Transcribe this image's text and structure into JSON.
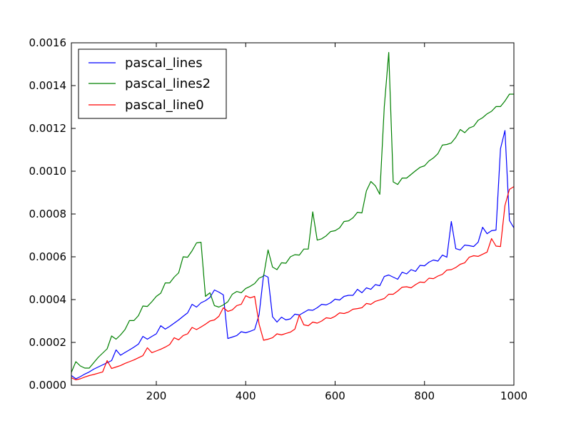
{
  "chart_data": {
    "type": "line",
    "title": "",
    "xlabel": "",
    "ylabel": "",
    "xlim": [
      10,
      1000
    ],
    "ylim": [
      0,
      0.0016
    ],
    "xticks": [
      200,
      400,
      600,
      800,
      1000
    ],
    "xtick_labels": [
      "200",
      "400",
      "600",
      "800",
      "1000"
    ],
    "yticks": [
      0,
      0.0002,
      0.0004,
      0.0006,
      0.0008,
      0.001,
      0.0012,
      0.0014,
      0.0016
    ],
    "ytick_labels": [
      "0.0000",
      "0.0002",
      "0.0004",
      "0.0006",
      "0.0008",
      "0.0010",
      "0.0012",
      "0.0014",
      "0.0016"
    ],
    "grid": false,
    "legend_position": "top-left",
    "series": [
      {
        "name": "pascal_lines",
        "color": "#0000ff",
        "x": [
          10,
          20,
          30,
          40,
          50,
          60,
          70,
          80,
          90,
          100,
          110,
          120,
          130,
          140,
          150,
          160,
          170,
          180,
          190,
          200,
          210,
          220,
          230,
          240,
          250,
          260,
          270,
          280,
          290,
          300,
          310,
          320,
          330,
          340,
          350,
          360,
          370,
          380,
          390,
          400,
          410,
          420,
          430,
          440,
          450,
          460,
          470,
          480,
          490,
          500,
          510,
          520,
          530,
          540,
          550,
          560,
          570,
          580,
          590,
          600,
          610,
          620,
          630,
          640,
          650,
          660,
          670,
          680,
          690,
          700,
          710,
          720,
          730,
          740,
          750,
          760,
          770,
          780,
          790,
          800,
          810,
          820,
          830,
          840,
          850,
          860,
          870,
          880,
          890,
          900,
          910,
          920,
          930,
          940,
          950,
          960,
          970,
          980,
          990,
          1000
        ],
        "y": [
          4.5e-05,
          3e-05,
          4e-05,
          5.2e-05,
          6.2e-05,
          7.5e-05,
          8.5e-05,
          9.5e-05,
          0.000105,
          0.000115,
          0.000165,
          0.00014,
          0.000153,
          0.000165,
          0.000178,
          0.000192,
          0.000228,
          0.000215,
          0.000228,
          0.00024,
          0.000278,
          0.000262,
          0.000275,
          0.00029,
          0.000305,
          0.000322,
          0.000338,
          0.000378,
          0.000365,
          0.000385,
          0.000395,
          0.00041,
          0.000445,
          0.000435,
          0.000422,
          0.000218,
          0.000225,
          0.000232,
          0.00025,
          0.000245,
          0.000252,
          0.00026,
          0.00033,
          0.000515,
          0.000505,
          0.00032,
          0.000295,
          0.000318,
          0.000305,
          0.00031,
          0.000332,
          0.000328,
          0.00034,
          0.000352,
          0.00035,
          0.000362,
          0.000378,
          0.000375,
          0.000385,
          0.000402,
          0.000398,
          0.000415,
          0.00042,
          0.00042,
          0.000448,
          0.000432,
          0.000455,
          0.000448,
          0.00047,
          0.000465,
          0.000508,
          0.000515,
          0.000505,
          0.000495,
          0.000528,
          0.00052,
          0.00054,
          0.000532,
          0.00056,
          0.000558,
          0.000575,
          0.000585,
          0.00058,
          0.000608,
          0.000598,
          0.000765,
          0.000638,
          0.000632,
          0.000655,
          0.000652,
          0.000648,
          0.000668,
          0.000738,
          0.000708,
          0.000722,
          0.000725,
          0.001105,
          0.00119,
          0.00077,
          0.000735
        ]
      },
      {
        "name": "pascal_lines2",
        "color": "#008000",
        "x": [
          10,
          20,
          30,
          40,
          50,
          60,
          70,
          80,
          90,
          100,
          110,
          120,
          130,
          140,
          150,
          160,
          170,
          180,
          190,
          200,
          210,
          220,
          230,
          240,
          250,
          260,
          270,
          280,
          290,
          300,
          310,
          320,
          330,
          340,
          350,
          360,
          370,
          380,
          390,
          400,
          410,
          420,
          430,
          440,
          450,
          460,
          470,
          480,
          490,
          500,
          510,
          520,
          530,
          540,
          550,
          560,
          570,
          580,
          590,
          600,
          610,
          620,
          630,
          640,
          650,
          660,
          670,
          680,
          690,
          700,
          710,
          720,
          730,
          740,
          750,
          760,
          770,
          780,
          790,
          800,
          810,
          820,
          830,
          840,
          850,
          860,
          870,
          880,
          890,
          900,
          910,
          920,
          930,
          940,
          950,
          960,
          970,
          980,
          990,
          1000
        ],
        "y": [
          6e-05,
          0.00011,
          9e-05,
          8e-05,
          8e-05,
          0.000105,
          0.00013,
          0.00015,
          0.00017,
          0.00023,
          0.000215,
          0.000235,
          0.00026,
          0.000302,
          0.000302,
          0.000325,
          0.00037,
          0.000368,
          0.00039,
          0.000415,
          0.00043,
          0.000478,
          0.000478,
          0.000505,
          0.000525,
          0.0006,
          0.000598,
          0.000628,
          0.000665,
          0.000668,
          0.000415,
          0.000432,
          0.000372,
          0.000365,
          0.000375,
          0.00039,
          0.000425,
          0.000438,
          0.000432,
          0.000452,
          0.000462,
          0.000475,
          0.0005,
          0.00051,
          0.000632,
          0.000552,
          0.00054,
          0.000572,
          0.00057,
          0.0006,
          0.00061,
          0.000608,
          0.000636,
          0.000636,
          0.00081,
          0.000678,
          0.000684,
          0.000698,
          0.000718,
          0.000722,
          0.000735,
          0.000765,
          0.000768,
          0.000782,
          0.000808,
          0.000805,
          0.000908,
          0.000952,
          0.000932,
          0.000892,
          0.0013,
          0.001555,
          0.00095,
          0.000938,
          0.000968,
          0.000968,
          0.000985,
          0.001002,
          0.001018,
          0.001025,
          0.001048,
          0.001062,
          0.001082,
          0.001122,
          0.001125,
          0.001132,
          0.001158,
          0.001195,
          0.00118,
          0.001202,
          0.00121,
          0.001238,
          0.00125,
          0.001268,
          0.00128,
          0.001302,
          0.001302,
          0.001328,
          0.00136,
          0.00136
        ]
      },
      {
        "name": "pascal_line0",
        "color": "#ff0000",
        "x": [
          10,
          20,
          30,
          40,
          50,
          60,
          70,
          80,
          90,
          100,
          110,
          120,
          130,
          140,
          150,
          160,
          170,
          180,
          190,
          200,
          210,
          220,
          230,
          240,
          250,
          260,
          270,
          280,
          290,
          300,
          310,
          320,
          330,
          340,
          350,
          360,
          370,
          380,
          390,
          400,
          410,
          420,
          430,
          440,
          450,
          460,
          470,
          480,
          490,
          500,
          510,
          520,
          530,
          540,
          550,
          560,
          570,
          580,
          590,
          600,
          610,
          620,
          630,
          640,
          650,
          660,
          670,
          680,
          690,
          700,
          710,
          720,
          730,
          740,
          750,
          760,
          770,
          780,
          790,
          800,
          810,
          820,
          830,
          840,
          850,
          860,
          870,
          880,
          890,
          900,
          910,
          920,
          930,
          940,
          950,
          960,
          970,
          980,
          990,
          1000
        ],
        "y": [
          3.5e-05,
          2.5e-05,
          3e-05,
          3.8e-05,
          4.5e-05,
          5e-05,
          5.6e-05,
          6.2e-05,
          0.000115,
          7.8e-05,
          8.5e-05,
          9.2e-05,
          0.000102,
          0.00011,
          0.000118,
          0.000128,
          0.000138,
          0.000175,
          0.000152,
          0.00016,
          0.000168,
          0.000178,
          0.00019,
          0.000222,
          0.000212,
          0.000232,
          0.00024,
          0.00027,
          0.00026,
          0.000272,
          0.000285,
          0.0003,
          0.000305,
          0.000322,
          0.000362,
          0.000345,
          0.000352,
          0.000372,
          0.000378,
          0.000418,
          0.000408,
          0.000415,
          0.000285,
          0.00021,
          0.000215,
          0.000222,
          0.00024,
          0.000235,
          0.000242,
          0.000248,
          0.000262,
          0.000328,
          0.000282,
          0.000278,
          0.000295,
          0.00029,
          0.0003,
          0.000315,
          0.000312,
          0.000322,
          0.000338,
          0.000335,
          0.000342,
          0.000355,
          0.000358,
          0.000362,
          0.000382,
          0.000378,
          0.000392,
          0.000398,
          0.000405,
          0.000425,
          0.000425,
          0.00044,
          0.000458,
          0.00046,
          0.000455,
          0.00047,
          0.000482,
          0.00048,
          0.0005,
          0.000498,
          0.00051,
          0.000518,
          0.000538,
          0.00054,
          0.00055,
          0.000565,
          0.000572,
          0.000598,
          0.000605,
          0.000602,
          0.000612,
          0.000622,
          0.000685,
          0.00065,
          0.000648,
          0.00084,
          0.000915,
          0.000928
        ]
      }
    ]
  }
}
